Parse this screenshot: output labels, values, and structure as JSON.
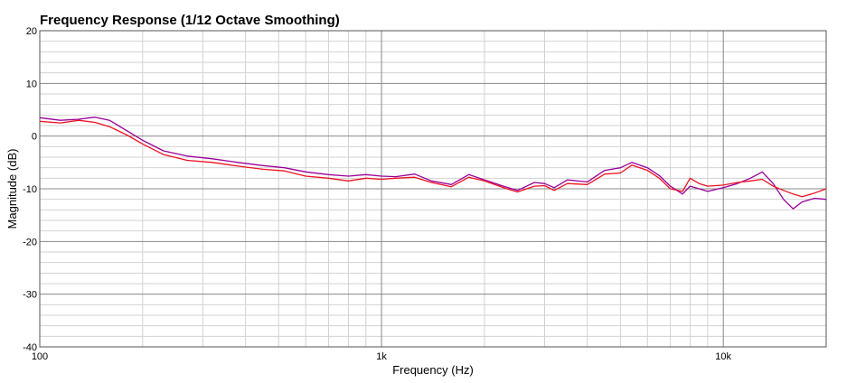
{
  "chart_data": {
    "type": "line",
    "title": "Frequency Response (1/12 Octave Smoothing)",
    "xlabel": "Frequency (Hz)",
    "ylabel": "Magnitude (dB)",
    "xscale": "log",
    "xlim": [
      100,
      20000
    ],
    "ylim": [
      -40,
      20
    ],
    "x_ticks": [
      {
        "value": 100,
        "label": "100"
      },
      {
        "value": 1000,
        "label": "1k"
      },
      {
        "value": 10000,
        "label": "10k"
      }
    ],
    "y_ticks": [
      {
        "value": 20,
        "label": "20"
      },
      {
        "value": 10,
        "label": "10"
      },
      {
        "value": 0,
        "label": "0"
      },
      {
        "value": -10,
        "label": "-10"
      },
      {
        "value": -20,
        "label": "-20"
      },
      {
        "value": -30,
        "label": "-30"
      },
      {
        "value": -40,
        "label": "-40"
      }
    ],
    "grid": true,
    "legend": "none",
    "series": [
      {
        "color": "#990099",
        "points": [
          [
            100,
            3.5
          ],
          [
            115,
            3.0
          ],
          [
            130,
            3.2
          ],
          [
            145,
            3.6
          ],
          [
            160,
            3.0
          ],
          [
            180,
            1.0
          ],
          [
            200,
            -0.8
          ],
          [
            230,
            -2.8
          ],
          [
            270,
            -3.8
          ],
          [
            320,
            -4.3
          ],
          [
            380,
            -5.0
          ],
          [
            450,
            -5.6
          ],
          [
            520,
            -6.0
          ],
          [
            600,
            -6.8
          ],
          [
            700,
            -7.3
          ],
          [
            800,
            -7.6
          ],
          [
            900,
            -7.3
          ],
          [
            1000,
            -7.6
          ],
          [
            1100,
            -7.7
          ],
          [
            1250,
            -7.2
          ],
          [
            1400,
            -8.5
          ],
          [
            1600,
            -9.2
          ],
          [
            1800,
            -7.3
          ],
          [
            2000,
            -8.3
          ],
          [
            2300,
            -9.6
          ],
          [
            2500,
            -10.3
          ],
          [
            2800,
            -8.8
          ],
          [
            3000,
            -9.0
          ],
          [
            3200,
            -9.8
          ],
          [
            3500,
            -8.3
          ],
          [
            4000,
            -8.7
          ],
          [
            4500,
            -6.5
          ],
          [
            5000,
            -6.0
          ],
          [
            5400,
            -5.0
          ],
          [
            6000,
            -6.0
          ],
          [
            6500,
            -7.5
          ],
          [
            7000,
            -9.5
          ],
          [
            7600,
            -11.0
          ],
          [
            8000,
            -9.5
          ],
          [
            8500,
            -10.0
          ],
          [
            9000,
            -10.5
          ],
          [
            10000,
            -9.8
          ],
          [
            11000,
            -9.0
          ],
          [
            12000,
            -8.0
          ],
          [
            13000,
            -6.8
          ],
          [
            14000,
            -9.0
          ],
          [
            15000,
            -12.0
          ],
          [
            16000,
            -13.8
          ],
          [
            17000,
            -12.5
          ],
          [
            18500,
            -11.8
          ],
          [
            20000,
            -12.0
          ]
        ]
      },
      {
        "color": "#ee1122",
        "points": [
          [
            100,
            2.8
          ],
          [
            115,
            2.5
          ],
          [
            130,
            3.0
          ],
          [
            145,
            2.6
          ],
          [
            160,
            1.8
          ],
          [
            180,
            0.2
          ],
          [
            200,
            -1.5
          ],
          [
            230,
            -3.5
          ],
          [
            270,
            -4.6
          ],
          [
            320,
            -5.0
          ],
          [
            380,
            -5.7
          ],
          [
            450,
            -6.3
          ],
          [
            520,
            -6.6
          ],
          [
            600,
            -7.6
          ],
          [
            700,
            -8.0
          ],
          [
            800,
            -8.5
          ],
          [
            900,
            -8.0
          ],
          [
            1000,
            -8.2
          ],
          [
            1100,
            -8.0
          ],
          [
            1250,
            -7.8
          ],
          [
            1400,
            -8.8
          ],
          [
            1600,
            -9.6
          ],
          [
            1800,
            -7.8
          ],
          [
            2000,
            -8.5
          ],
          [
            2300,
            -9.9
          ],
          [
            2500,
            -10.6
          ],
          [
            2800,
            -9.5
          ],
          [
            3000,
            -9.4
          ],
          [
            3200,
            -10.3
          ],
          [
            3500,
            -9.0
          ],
          [
            4000,
            -9.2
          ],
          [
            4500,
            -7.2
          ],
          [
            5000,
            -7.0
          ],
          [
            5400,
            -5.5
          ],
          [
            6000,
            -6.5
          ],
          [
            6500,
            -8.0
          ],
          [
            7000,
            -10.0
          ],
          [
            7600,
            -10.5
          ],
          [
            8000,
            -8.0
          ],
          [
            8500,
            -9.0
          ],
          [
            9000,
            -9.5
          ],
          [
            10000,
            -9.3
          ],
          [
            11000,
            -8.8
          ],
          [
            12000,
            -8.5
          ],
          [
            13000,
            -8.2
          ],
          [
            14000,
            -9.5
          ],
          [
            15000,
            -10.3
          ],
          [
            16000,
            -11.0
          ],
          [
            17000,
            -11.5
          ],
          [
            18500,
            -10.8
          ],
          [
            20000,
            -10.0
          ]
        ]
      }
    ]
  }
}
